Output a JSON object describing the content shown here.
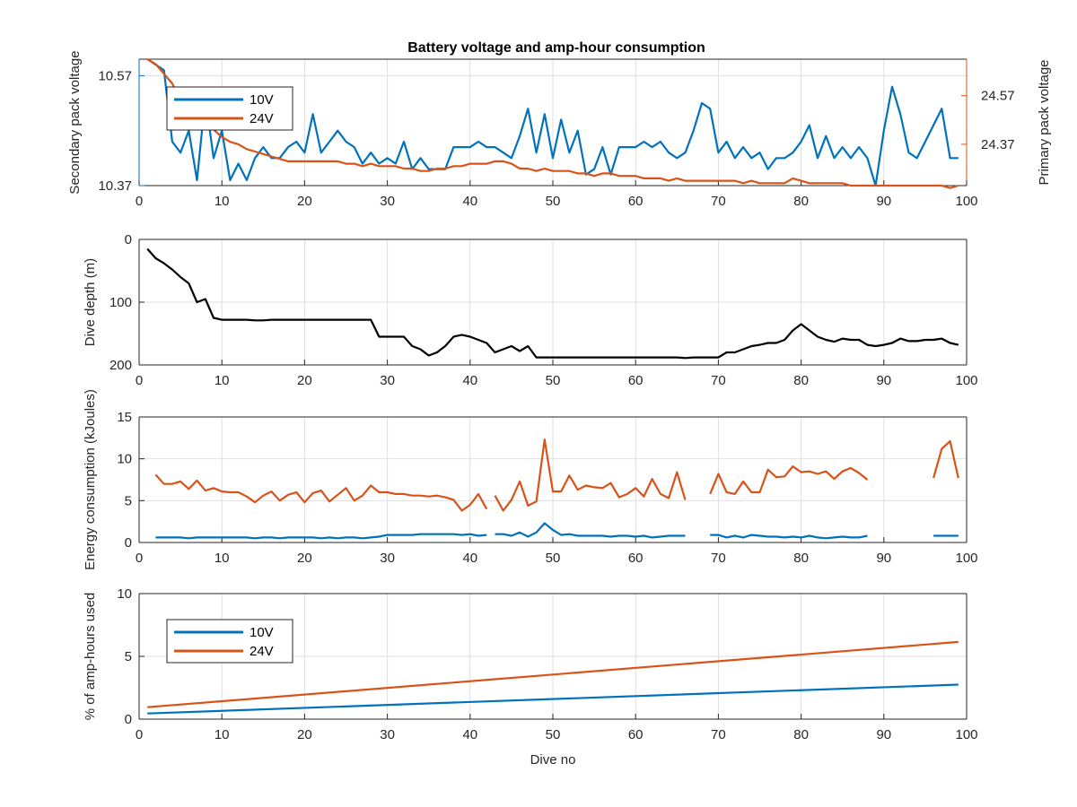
{
  "figure": {
    "title": "Battery voltage and amp-hour consumption"
  },
  "colors": {
    "v10": "#0072BD",
    "v24": "#D95319",
    "black": "#000000",
    "grid": "#dfdfdf",
    "axis": "#262626"
  },
  "chart_data": [
    {
      "id": "voltage",
      "type": "line",
      "title": "Battery voltage and amp-hour consumption",
      "xlabel": "",
      "ylabel_left": "Secondary pack voltage",
      "ylabel_right": "Primary pack voltage",
      "xlim": [
        0,
        100
      ],
      "xticks": [
        0,
        10,
        20,
        30,
        40,
        50,
        60,
        70,
        80,
        90,
        100
      ],
      "ylim_left": [
        10.37,
        10.6
      ],
      "yticks_left": [
        10.37,
        10.57
      ],
      "ylim_right": [
        24.2,
        24.72
      ],
      "yticks_right": [
        24.37,
        24.57
      ],
      "legend": {
        "position": "top-left",
        "entries": [
          "10V",
          "24V"
        ]
      },
      "series": [
        {
          "name": "10V",
          "axis": "left",
          "x": [
            1,
            2,
            3,
            4,
            5,
            6,
            7,
            8,
            9,
            10,
            11,
            12,
            13,
            14,
            15,
            16,
            17,
            18,
            19,
            20,
            21,
            22,
            23,
            24,
            25,
            26,
            27,
            28,
            29,
            30,
            31,
            32,
            33,
            34,
            35,
            36,
            37,
            38,
            39,
            40,
            41,
            42,
            43,
            44,
            45,
            46,
            47,
            48,
            49,
            50,
            51,
            52,
            53,
            54,
            55,
            56,
            57,
            58,
            59,
            60,
            61,
            62,
            63,
            64,
            65,
            66,
            67,
            68,
            69,
            70,
            71,
            72,
            73,
            74,
            75,
            76,
            77,
            78,
            79,
            80,
            81,
            82,
            83,
            84,
            85,
            86,
            87,
            88,
            89,
            90,
            91,
            92,
            93,
            94,
            95,
            96,
            97,
            98,
            99
          ],
          "y": [
            10.6,
            10.59,
            10.58,
            10.45,
            10.43,
            10.47,
            10.38,
            10.53,
            10.42,
            10.47,
            10.38,
            10.41,
            10.38,
            10.42,
            10.44,
            10.42,
            10.42,
            10.44,
            10.45,
            10.43,
            10.5,
            10.43,
            10.45,
            10.47,
            10.45,
            10.44,
            10.41,
            10.43,
            10.41,
            10.42,
            10.41,
            10.45,
            10.4,
            10.42,
            10.4,
            10.4,
            10.4,
            10.44,
            10.44,
            10.44,
            10.45,
            10.44,
            10.44,
            10.43,
            10.42,
            10.46,
            10.51,
            10.43,
            10.5,
            10.42,
            10.49,
            10.43,
            10.47,
            10.39,
            10.4,
            10.44,
            10.39,
            10.44,
            10.44,
            10.44,
            10.45,
            10.44,
            10.45,
            10.43,
            10.42,
            10.43,
            10.47,
            10.52,
            10.51,
            10.43,
            10.45,
            10.42,
            10.44,
            10.42,
            10.43,
            10.4,
            10.42,
            10.42,
            10.43,
            10.45,
            10.48,
            10.42,
            10.46,
            10.42,
            10.44,
            10.42,
            10.44,
            10.42,
            10.37,
            10.47,
            10.55,
            10.5,
            10.43,
            10.42,
            10.45,
            10.48,
            10.51,
            10.42,
            10.42
          ]
        },
        {
          "name": "24V",
          "axis": "right",
          "x": [
            1,
            2,
            3,
            4,
            5,
            6,
            7,
            8,
            9,
            10,
            11,
            12,
            13,
            14,
            15,
            16,
            17,
            18,
            19,
            20,
            21,
            22,
            23,
            24,
            25,
            26,
            27,
            28,
            29,
            30,
            31,
            32,
            33,
            34,
            35,
            36,
            37,
            38,
            39,
            40,
            41,
            42,
            43,
            44,
            45,
            46,
            47,
            48,
            49,
            50,
            51,
            52,
            53,
            54,
            55,
            56,
            57,
            58,
            59,
            60,
            61,
            62,
            63,
            64,
            65,
            66,
            67,
            68,
            69,
            70,
            71,
            72,
            73,
            74,
            75,
            76,
            77,
            78,
            79,
            80,
            81,
            82,
            83,
            84,
            85,
            86,
            87,
            88,
            89,
            90,
            91,
            92,
            93,
            94,
            95,
            96,
            97,
            98,
            99
          ],
          "y": [
            24.72,
            24.7,
            24.66,
            24.62,
            24.55,
            24.5,
            24.46,
            24.44,
            24.43,
            24.4,
            24.38,
            24.37,
            24.35,
            24.34,
            24.33,
            24.32,
            24.31,
            24.3,
            24.3,
            24.3,
            24.3,
            24.3,
            24.3,
            24.3,
            24.29,
            24.29,
            24.28,
            24.29,
            24.28,
            24.28,
            24.28,
            24.27,
            24.27,
            24.26,
            24.26,
            24.27,
            24.27,
            24.28,
            24.28,
            24.29,
            24.29,
            24.29,
            24.3,
            24.3,
            24.29,
            24.27,
            24.27,
            24.26,
            24.27,
            24.26,
            24.26,
            24.26,
            24.25,
            24.25,
            24.24,
            24.25,
            24.25,
            24.24,
            24.24,
            24.24,
            24.23,
            24.23,
            24.23,
            24.22,
            24.23,
            24.22,
            24.22,
            24.22,
            24.22,
            24.22,
            24.22,
            24.22,
            24.21,
            24.22,
            24.21,
            24.21,
            24.21,
            24.21,
            24.23,
            24.22,
            24.21,
            24.21,
            24.21,
            24.21,
            24.21,
            24.2,
            24.2,
            24.2,
            24.2,
            24.2,
            24.2,
            24.2,
            24.2,
            24.2,
            24.2,
            24.2,
            24.2,
            24.19,
            24.2
          ]
        }
      ]
    },
    {
      "id": "depth",
      "type": "line",
      "xlabel": "",
      "ylabel": "Dive depth (m)",
      "xlim": [
        0,
        100
      ],
      "xticks": [
        0,
        10,
        20,
        30,
        40,
        50,
        60,
        70,
        80,
        90,
        100
      ],
      "ylim": [
        0,
        200
      ],
      "yreversed": true,
      "yticks": [
        0,
        100,
        200
      ],
      "series": [
        {
          "x": [
            1,
            2,
            3,
            4,
            5,
            6,
            7,
            8,
            9,
            10,
            11,
            12,
            13,
            14,
            15,
            16,
            17,
            18,
            19,
            20,
            21,
            22,
            23,
            24,
            25,
            26,
            27,
            28,
            29,
            30,
            31,
            32,
            33,
            34,
            35,
            36,
            37,
            38,
            39,
            40,
            41,
            42,
            43,
            44,
            45,
            46,
            47,
            48,
            49,
            50,
            51,
            52,
            53,
            54,
            55,
            56,
            57,
            58,
            59,
            60,
            61,
            62,
            63,
            64,
            65,
            66,
            67,
            68,
            69,
            70,
            71,
            72,
            73,
            74,
            75,
            76,
            77,
            78,
            79,
            80,
            81,
            82,
            83,
            84,
            85,
            86,
            87,
            88,
            89,
            90,
            91,
            92,
            93,
            94,
            95,
            96,
            97,
            98,
            99
          ],
          "y": [
            15,
            30,
            38,
            48,
            60,
            70,
            100,
            95,
            125,
            128,
            128,
            128,
            128,
            129,
            129,
            128,
            128,
            128,
            128,
            128,
            128,
            128,
            128,
            128,
            128,
            128,
            128,
            128,
            155,
            155,
            155,
            155,
            170,
            175,
            185,
            180,
            170,
            155,
            152,
            155,
            160,
            165,
            180,
            175,
            170,
            178,
            170,
            188,
            188,
            188,
            188,
            188,
            188,
            188,
            188,
            188,
            188,
            188,
            188,
            188,
            188,
            188,
            188,
            188,
            188,
            189,
            188,
            188,
            188,
            188,
            180,
            180,
            175,
            170,
            168,
            165,
            165,
            160,
            145,
            135,
            145,
            155,
            160,
            163,
            158,
            160,
            160,
            168,
            170,
            168,
            165,
            158,
            162,
            162,
            160,
            160,
            158,
            165,
            168
          ]
        }
      ]
    },
    {
      "id": "energy",
      "type": "line",
      "xlabel": "",
      "ylabel": "Energy consumption (kJoules)",
      "xlim": [
        0,
        100
      ],
      "xticks": [
        0,
        10,
        20,
        30,
        40,
        50,
        60,
        70,
        80,
        90,
        100
      ],
      "ylim": [
        0,
        15
      ],
      "yticks": [
        0,
        5,
        10,
        15
      ],
      "series": [
        {
          "name": "10V",
          "x": [
            2,
            3,
            4,
            5,
            6,
            7,
            8,
            9,
            10,
            11,
            12,
            13,
            14,
            15,
            16,
            17,
            18,
            19,
            20,
            21,
            22,
            23,
            24,
            25,
            26,
            27,
            28,
            29,
            30,
            31,
            32,
            33,
            34,
            35,
            36,
            37,
            38,
            39,
            40,
            41,
            42,
            null,
            43,
            44,
            45,
            46,
            47,
            48,
            49,
            50,
            51,
            52,
            53,
            54,
            55,
            56,
            57,
            58,
            59,
            60,
            61,
            62,
            63,
            64,
            65,
            66,
            null,
            69,
            70,
            71,
            72,
            73,
            74,
            75,
            76,
            77,
            78,
            79,
            80,
            81,
            82,
            83,
            84,
            85,
            86,
            87,
            88,
            null,
            96,
            97,
            98,
            99
          ],
          "y": [
            0.6,
            0.6,
            0.6,
            0.6,
            0.5,
            0.6,
            0.6,
            0.6,
            0.6,
            0.6,
            0.6,
            0.6,
            0.5,
            0.6,
            0.6,
            0.5,
            0.6,
            0.6,
            0.6,
            0.6,
            0.5,
            0.6,
            0.5,
            0.6,
            0.6,
            0.5,
            0.6,
            0.7,
            0.9,
            0.9,
            0.9,
            0.9,
            1.0,
            1.0,
            1.0,
            1.0,
            1.0,
            0.9,
            1.0,
            0.8,
            0.9,
            null,
            1.0,
            1.0,
            0.8,
            1.2,
            0.7,
            1.2,
            2.3,
            1.5,
            0.9,
            1.0,
            0.8,
            0.8,
            0.8,
            0.8,
            0.7,
            0.8,
            0.8,
            0.7,
            0.8,
            0.6,
            0.7,
            0.8,
            0.8,
            0.8,
            null,
            0.9,
            0.9,
            0.6,
            0.8,
            0.6,
            0.9,
            0.8,
            0.7,
            0.7,
            0.6,
            0.7,
            0.6,
            0.8,
            0.6,
            0.5,
            0.6,
            0.7,
            0.6,
            0.6,
            0.8,
            null,
            0.8,
            0.8,
            0.8,
            0.8
          ]
        },
        {
          "name": "24V",
          "x": [
            2,
            3,
            4,
            5,
            6,
            7,
            8,
            9,
            10,
            11,
            12,
            13,
            14,
            15,
            16,
            17,
            18,
            19,
            20,
            21,
            22,
            23,
            24,
            25,
            26,
            27,
            28,
            29,
            30,
            31,
            32,
            33,
            34,
            35,
            36,
            37,
            38,
            39,
            40,
            41,
            42,
            null,
            43,
            44,
            45,
            46,
            47,
            48,
            49,
            50,
            51,
            52,
            53,
            54,
            55,
            56,
            57,
            58,
            59,
            60,
            61,
            62,
            63,
            64,
            65,
            66,
            null,
            69,
            70,
            71,
            72,
            73,
            74,
            75,
            76,
            77,
            78,
            79,
            80,
            81,
            82,
            83,
            84,
            85,
            86,
            87,
            88,
            null,
            96,
            97,
            98,
            99
          ],
          "y": [
            8.1,
            7.0,
            7.0,
            7.3,
            6.4,
            7.4,
            6.2,
            6.5,
            6.1,
            6.0,
            6.0,
            5.5,
            4.8,
            5.6,
            6.1,
            5.0,
            5.7,
            6.0,
            4.8,
            5.9,
            6.2,
            4.9,
            5.7,
            6.5,
            5.0,
            5.6,
            6.8,
            6.0,
            6.0,
            5.8,
            5.8,
            5.6,
            5.6,
            5.5,
            5.6,
            5.4,
            5.1,
            3.8,
            4.5,
            5.8,
            4.0,
            null,
            5.6,
            3.8,
            5.1,
            7.3,
            4.4,
            4.9,
            12.3,
            6.1,
            6.1,
            8.0,
            6.3,
            6.8,
            6.6,
            6.5,
            7.1,
            5.4,
            5.8,
            6.5,
            5.5,
            7.6,
            5.8,
            5.3,
            8.4,
            5.1,
            null,
            5.8,
            8.2,
            6.0,
            5.8,
            7.3,
            6.0,
            6.0,
            8.7,
            7.8,
            7.9,
            9.1,
            8.4,
            8.5,
            8.2,
            8.5,
            7.6,
            8.5,
            8.9,
            8.3,
            7.5,
            null,
            7.7,
            11.2,
            12.1,
            7.7
          ]
        }
      ]
    },
    {
      "id": "amphours",
      "type": "line",
      "xlabel": "Dive no",
      "ylabel": "% of amp-hours used",
      "xlim": [
        0,
        100
      ],
      "xticks": [
        0,
        10,
        20,
        30,
        40,
        50,
        60,
        70,
        80,
        90,
        100
      ],
      "ylim": [
        0,
        10
      ],
      "yticks": [
        0,
        5,
        10
      ],
      "legend": {
        "position": "left",
        "entries": [
          "10V",
          "24V"
        ]
      },
      "series": [
        {
          "name": "10V",
          "x": [
            1,
            99
          ],
          "y": [
            0.45,
            2.75
          ]
        },
        {
          "name": "24V",
          "x": [
            1,
            99
          ],
          "y": [
            0.95,
            6.15
          ]
        }
      ]
    }
  ]
}
